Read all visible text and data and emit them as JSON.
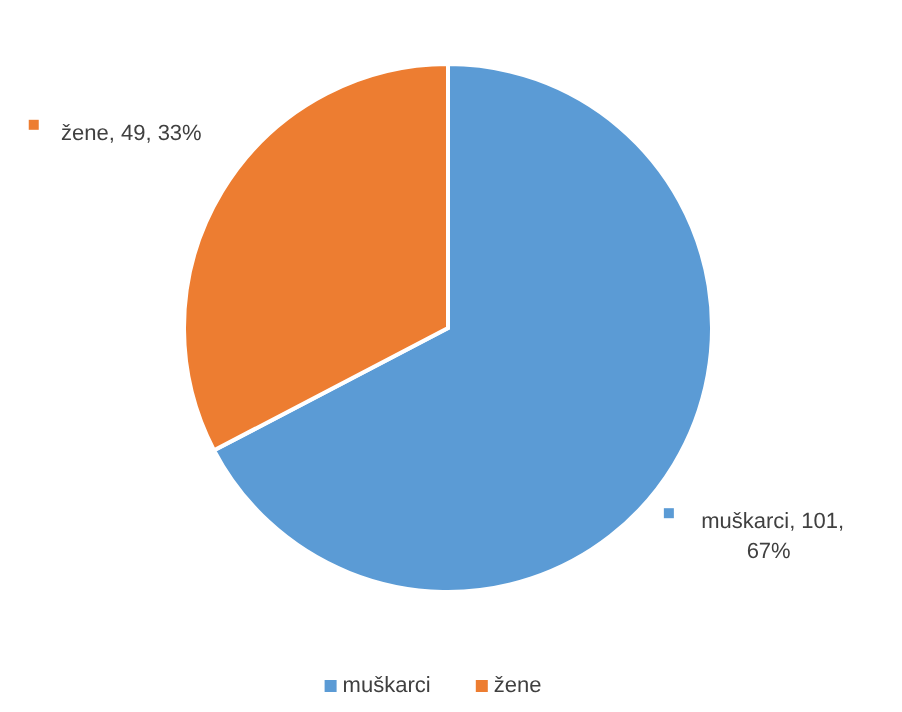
{
  "chart_data": {
    "type": "pie",
    "categories": [
      "muškarci",
      "žene"
    ],
    "values": [
      101,
      49
    ],
    "colors": [
      "#5b9bd5",
      "#ed7d31"
    ],
    "value_labels": [
      "muškarci, 101, 67%",
      "žene, 49, 33%"
    ],
    "legend": "bottom"
  }
}
